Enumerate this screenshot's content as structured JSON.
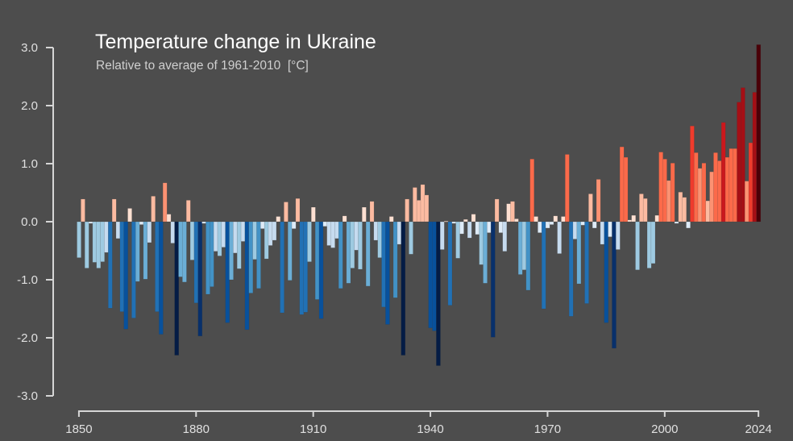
{
  "chart_data": {
    "type": "bar",
    "title": "Temperature change in Ukraine",
    "subtitle": "Relative to average of 1961-2010  [°C]",
    "xlabel": "",
    "ylabel": "",
    "ylim": [
      -3.0,
      3.0
    ],
    "xlim": [
      1850,
      2024
    ],
    "grid": false,
    "background_color": "#4d4d4d",
    "y_ticks": [
      "3.0",
      "2.0",
      "1.0",
      "0.0",
      "-1.0",
      "-2.0",
      "-3.0"
    ],
    "y_tick_values": [
      3,
      2,
      1,
      0,
      -1,
      -2,
      -3
    ],
    "x_ticks": [
      "1850",
      "1880",
      "1910",
      "1940",
      "1970",
      "2000",
      "2024"
    ],
    "x_tick_values": [
      1850,
      1880,
      1910,
      1940,
      1970,
      2000,
      2024
    ],
    "color_scale": {
      "cold": [
        "#deebf7",
        "#c6dbef",
        "#9ecae1",
        "#6baed6",
        "#4292c6",
        "#2171b5",
        "#08519c",
        "#08306b",
        "#041c45"
      ],
      "warm": [
        "#fee0d2",
        "#fcbba1",
        "#fc9272",
        "#fb6a4a",
        "#ef3b2c",
        "#cb181d",
        "#a50f15",
        "#67000d",
        "#4a0008"
      ]
    },
    "start_year": 1850,
    "values": [
      -0.62,
      0.39,
      -0.8,
      -0.03,
      -0.7,
      -0.8,
      -0.69,
      -0.53,
      -1.49,
      0.39,
      -0.29,
      -1.55,
      -1.85,
      0.23,
      -1.66,
      -1.03,
      -0.05,
      -0.99,
      -0.36,
      0.44,
      -1.55,
      -1.94,
      0.67,
      0.13,
      -0.37,
      -2.3,
      -0.95,
      -1.04,
      0.37,
      -0.66,
      -1.4,
      -1.97,
      -0.03,
      -1.25,
      -1.12,
      -0.51,
      -0.59,
      -0.44,
      -1.74,
      -1.0,
      -0.54,
      -0.81,
      -0.34,
      -1.86,
      -1.23,
      -0.65,
      -1.15,
      -0.12,
      -0.64,
      -0.41,
      -0.32,
      0.09,
      -1.57,
      0.34,
      -1.01,
      -0.12,
      0.4,
      -1.6,
      -1.56,
      -0.69,
      0.25,
      -1.34,
      -1.67,
      -0.08,
      -0.41,
      -0.45,
      -0.29,
      -1.15,
      0.1,
      -1.06,
      -0.8,
      -0.49,
      -0.82,
      0.25,
      -1.11,
      0.35,
      -0.32,
      -0.62,
      -1.47,
      -1.77,
      0.09,
      -1.31,
      -0.39,
      -2.3,
      0.39,
      -0.56,
      0.59,
      0.37,
      0.64,
      0.46,
      -1.83,
      -1.88,
      -2.48,
      -0.48,
      0.01,
      -1.44,
      -0.03,
      -0.63,
      -0.21,
      0.04,
      -0.28,
      0.13,
      -0.22,
      -0.74,
      -1.06,
      -0.19,
      -1.99,
      0.39,
      -0.19,
      -0.51,
      0.31,
      0.35,
      0.05,
      -0.91,
      -0.83,
      -1.18,
      1.08,
      0.09,
      -0.19,
      -1.5,
      -0.11,
      -0.05,
      0.1,
      -0.55,
      0.09,
      1.16,
      -1.63,
      -0.3,
      -1.07,
      -0.06,
      -1.41,
      0.48,
      -0.11,
      0.73,
      -0.39,
      -1.74,
      -0.26,
      -2.18,
      -0.48,
      1.29,
      1.11,
      0.03,
      0.11,
      -0.83,
      0.48,
      0.4,
      -0.8,
      -0.72,
      0.11,
      1.2,
      1.08,
      0.71,
      1.01,
      -0.03,
      0.51,
      0.42,
      -0.11,
      1.65,
      1.19,
      0.92,
      1.01,
      0.36,
      0.86,
      1.19,
      1.05,
      1.71,
      1.11,
      1.26,
      1.26,
      2.06,
      2.31,
      0.7,
      1.36,
      2.23,
      3.05
    ]
  }
}
